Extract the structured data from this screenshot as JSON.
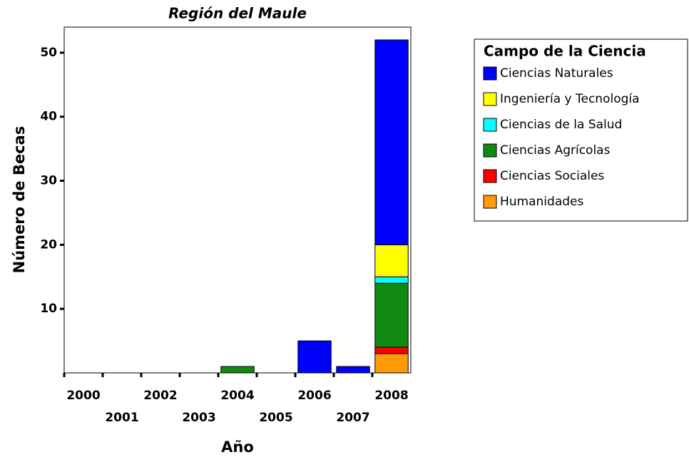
{
  "chart_data": {
    "type": "stacked_bar",
    "title": "Región del Maule",
    "x_label": "Año",
    "y_label": "Número de Becas",
    "categories": [
      "2000",
      "2001",
      "2002",
      "2003",
      "2004",
      "2005",
      "2006",
      "2007",
      "2008"
    ],
    "series": [
      {
        "name": "Ciencias Naturales",
        "color": "#0000ff",
        "values": [
          0,
          0,
          0,
          0,
          0,
          0,
          5,
          1,
          32
        ]
      },
      {
        "name": "Ingeniería y Tecnología",
        "color": "#ffff00",
        "values": [
          0,
          0,
          0,
          0,
          0,
          0,
          0,
          0,
          5
        ]
      },
      {
        "name": "Ciencias de la Salud",
        "color": "#00ffff",
        "values": [
          0,
          0,
          0,
          0,
          0,
          0,
          0,
          0,
          1
        ]
      },
      {
        "name": "Ciencias Agrícolas",
        "color": "#128a12",
        "values": [
          0,
          0,
          0,
          0,
          1,
          0,
          0,
          0,
          10
        ]
      },
      {
        "name": "Ciencias Sociales",
        "color": "#ff0000",
        "values": [
          0,
          0,
          0,
          0,
          0,
          0,
          0,
          0,
          1
        ]
      },
      {
        "name": "Humanidades",
        "color": "#ff9a0a",
        "values": [
          0,
          0,
          0,
          0,
          0,
          0,
          0,
          0,
          3
        ]
      }
    ],
    "legend_title": "Campo de la Ciencia",
    "legend_position": "right",
    "ylim": [
      0,
      54
    ],
    "yticks": [
      10,
      20,
      30,
      40,
      50
    ],
    "grid": false
  }
}
